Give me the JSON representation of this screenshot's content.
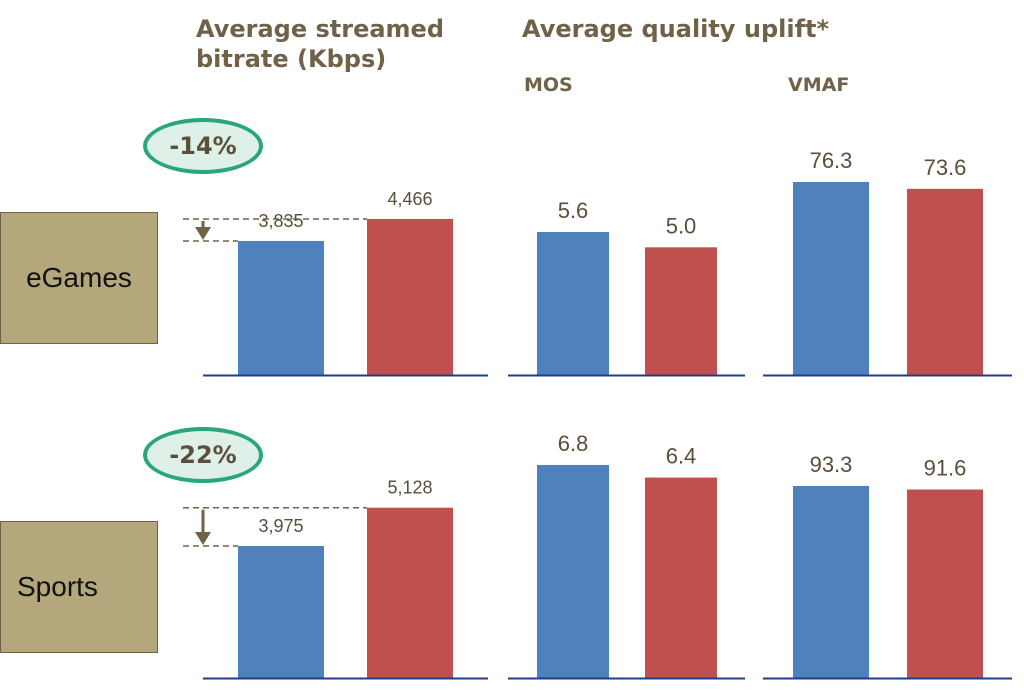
{
  "headers": {
    "bitrate": "Average streamed bitrate (Kbps)",
    "quality": "Average quality uplift*",
    "mos": "MOS",
    "vmaf": "VMAF"
  },
  "rows": [
    {
      "label": "eGames",
      "reduction": "-14%"
    },
    {
      "label": "Sports",
      "reduction": "-22%"
    }
  ],
  "colors": {
    "series_a": "#4f81bd",
    "series_b": "#c0504d",
    "axis": "#1f3c88",
    "label_text": "#5a4f3a",
    "arrow": "#6f6248"
  },
  "chart_data": [
    {
      "type": "bar",
      "row": "eGames",
      "metric": "Average streamed bitrate (Kbps)",
      "values": [
        3835,
        4466
      ],
      "value_labels": [
        "3,835",
        "4,466"
      ]
    },
    {
      "type": "bar",
      "row": "eGames",
      "metric": "MOS",
      "values": [
        5.6,
        5.0
      ],
      "value_labels": [
        "5.6",
        "5.0"
      ]
    },
    {
      "type": "bar",
      "row": "eGames",
      "metric": "VMAF",
      "values": [
        76.3,
        73.6
      ],
      "value_labels": [
        "76.3",
        "73.6"
      ]
    },
    {
      "type": "bar",
      "row": "Sports",
      "metric": "Average streamed bitrate (Kbps)",
      "values": [
        3975,
        5128
      ],
      "value_labels": [
        "3,975",
        "5,128"
      ]
    },
    {
      "type": "bar",
      "row": "Sports",
      "metric": "MOS",
      "values": [
        6.8,
        6.4
      ],
      "value_labels": [
        "6.8",
        "6.4"
      ]
    },
    {
      "type": "bar",
      "row": "Sports",
      "metric": "VMAF",
      "values": [
        93.3,
        91.6
      ],
      "value_labels": [
        "93.3",
        "91.6"
      ]
    }
  ]
}
